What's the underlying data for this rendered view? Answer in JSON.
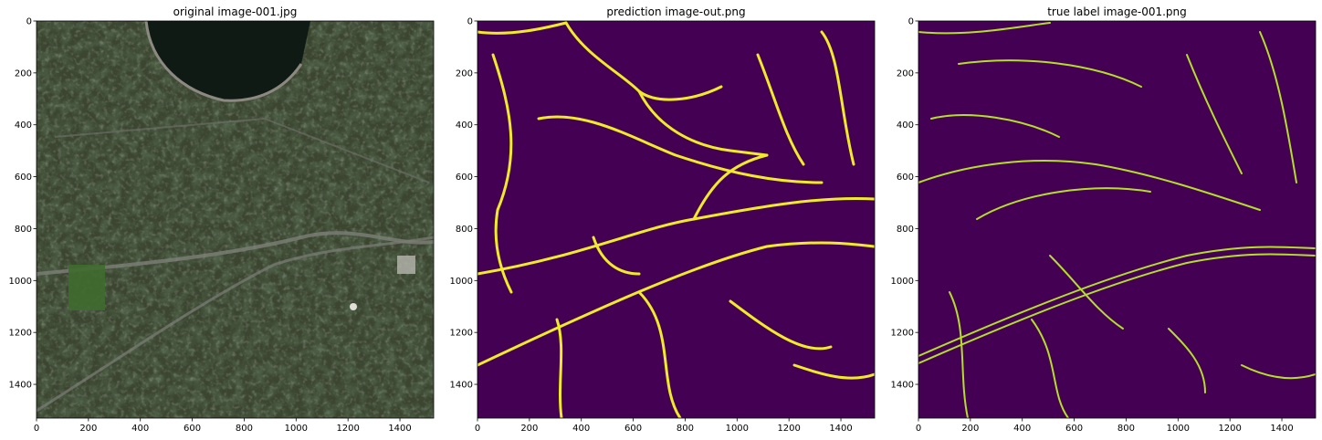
{
  "chart_data": [
    {
      "type": "image",
      "title": "original image-001.jpg",
      "xlim": [
        0,
        1530
      ],
      "ylim": [
        1530,
        0
      ],
      "xticks": [
        0,
        200,
        400,
        600,
        800,
        1000,
        1200,
        1400
      ],
      "yticks": [
        0,
        200,
        400,
        600,
        800,
        1000,
        1200,
        1400
      ],
      "content": "aerial-satellite-photo",
      "colors": {
        "terrain": "#3b4530",
        "lake": "#0f1a14",
        "road": "#7d7f78"
      }
    },
    {
      "type": "image",
      "title": "prediction image-out.png",
      "xlim": [
        0,
        1530
      ],
      "ylim": [
        1530,
        0
      ],
      "xticks": [
        0,
        200,
        400,
        600,
        800,
        1000,
        1200,
        1400
      ],
      "yticks": [
        0,
        200,
        400,
        600,
        800,
        1000,
        1200,
        1400
      ],
      "content": "road-segmentation-mask",
      "colors": {
        "background": "#440154",
        "road": "#f0ea2a",
        "edge": "#35b8a0"
      }
    },
    {
      "type": "image",
      "title": "true label image-001.png",
      "xlim": [
        0,
        1530
      ],
      "ylim": [
        1530,
        0
      ],
      "xticks": [
        0,
        200,
        400,
        600,
        800,
        1000,
        1200,
        1400
      ],
      "yticks": [
        0,
        200,
        400,
        600,
        800,
        1000,
        1200,
        1400
      ],
      "content": "road-segmentation-mask",
      "colors": {
        "background": "#440154",
        "road": "#b5dd2b"
      }
    }
  ]
}
